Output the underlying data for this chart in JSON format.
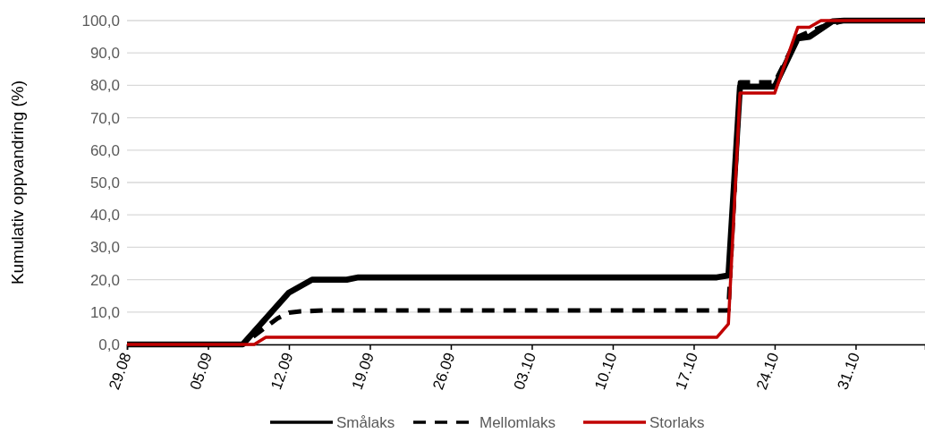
{
  "chart_data": {
    "type": "line",
    "ylabel": "Kumulativ oppvandring (%)",
    "xlim": [
      "--08-29",
      "--11-06"
    ],
    "xticks": [
      {
        "value": "--08-29",
        "label": "29.08"
      },
      {
        "value": "--09-05",
        "label": "05.09"
      },
      {
        "value": "--09-12",
        "label": "12.09"
      },
      {
        "value": "--09-19",
        "label": "19.09"
      },
      {
        "value": "--09-26",
        "label": "26.09"
      },
      {
        "value": "--10-03",
        "label": "03.10"
      },
      {
        "value": "--10-10",
        "label": "10.10"
      },
      {
        "value": "--10-17",
        "label": "17.10"
      },
      {
        "value": "--10-24",
        "label": "24.10"
      },
      {
        "value": "--10-31",
        "label": "31.10"
      }
    ],
    "ylim": [
      0,
      100
    ],
    "yticks": [
      {
        "value": 0,
        "label": "0,0"
      },
      {
        "value": 10,
        "label": "10,0"
      },
      {
        "value": 20,
        "label": "20,0"
      },
      {
        "value": 30,
        "label": "30,0"
      },
      {
        "value": 40,
        "label": "40,0"
      },
      {
        "value": 50,
        "label": "50,0"
      },
      {
        "value": 60,
        "label": "60,0"
      },
      {
        "value": 70,
        "label": "70,0"
      },
      {
        "value": 80,
        "label": "80,0"
      },
      {
        "value": 90,
        "label": "90,0"
      },
      {
        "value": 100,
        "label": "100,0"
      }
    ],
    "grid": "y",
    "legend": "bottom",
    "marker": "none",
    "series": [
      {
        "name": "Smålaks",
        "color": "#000000",
        "line_style": "solid",
        "x": [
          "--08-29",
          "--09-08",
          "--09-12",
          "--09-14",
          "--09-17",
          "--09-18",
          "--10-19",
          "--10-20",
          "--10-21",
          "--10-24",
          "--10-26",
          "--10-27",
          "--10-29",
          "--10-30",
          "--11-06"
        ],
        "values": [
          0,
          0,
          16,
          20,
          20,
          20.7,
          20.7,
          21.3,
          79.6,
          79.6,
          94.5,
          95,
          99.8,
          100,
          100
        ]
      },
      {
        "name": "Mellomlaks",
        "color": "#000000",
        "line_style": "dashed",
        "x": [
          "--08-29",
          "--09-08",
          "--09-11",
          "--09-12",
          "--09-13",
          "--09-15",
          "--10-20",
          "--10-21",
          "--10-24",
          "--10-25",
          "--10-26",
          "--10-28",
          "--10-30",
          "--11-06"
        ],
        "values": [
          0,
          0,
          8,
          9.8,
          10.2,
          10.5,
          10.5,
          80.9,
          80.9,
          88,
          95,
          98,
          100,
          100
        ]
      },
      {
        "name": "Storlaks",
        "color": "#c00000",
        "line_style": "solid",
        "x": [
          "--08-29",
          "--09-09",
          "--09-10",
          "--10-19",
          "--10-20",
          "--10-21",
          "--10-24",
          "--10-26",
          "--10-27",
          "--10-28",
          "--11-06"
        ],
        "values": [
          0,
          0,
          2.2,
          2.2,
          6.3,
          77.6,
          77.6,
          97.9,
          97.9,
          100,
          100
        ]
      }
    ]
  }
}
